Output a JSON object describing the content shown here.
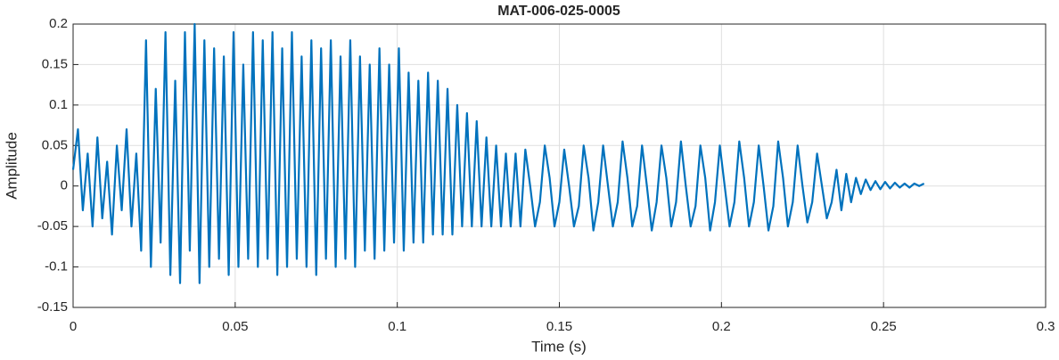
{
  "chart_data": {
    "type": "line",
    "title": "MAT-006-025-0005",
    "x_label": "Time (s)",
    "y_label": "Amplitude",
    "grid": true,
    "xlim": [
      0,
      0.3
    ],
    "xticks": [
      0,
      0.05,
      0.1,
      0.15,
      0.2,
      0.25,
      0.3
    ],
    "ylim": [
      -0.15,
      0.2
    ],
    "yticks": [
      -0.15,
      -0.1,
      -0.05,
      0,
      0.05,
      0.1,
      0.15,
      0.2
    ],
    "series": [
      {
        "color": "#0072bd",
        "x": [
          0,
          0.0015,
          0.003,
          0.0045,
          0.006,
          0.0075,
          0.009,
          0.0105,
          0.012,
          0.0135,
          0.015,
          0.0165,
          0.018,
          0.0195,
          0.021,
          0.0225,
          0.024,
          0.0255,
          0.027,
          0.0285,
          0.03,
          0.0315,
          0.033,
          0.0345,
          0.036,
          0.0375,
          0.039,
          0.0405,
          0.042,
          0.0435,
          0.045,
          0.0465,
          0.048,
          0.0495,
          0.051,
          0.0525,
          0.054,
          0.0555,
          0.057,
          0.0585,
          0.06,
          0.0615,
          0.063,
          0.0645,
          0.066,
          0.0675,
          0.069,
          0.0705,
          0.072,
          0.0735,
          0.075,
          0.0765,
          0.078,
          0.0795,
          0.081,
          0.0825,
          0.084,
          0.0855,
          0.087,
          0.0885,
          0.09,
          0.0915,
          0.093,
          0.0945,
          0.096,
          0.0975,
          0.099,
          0.1005,
          0.102,
          0.1035,
          0.105,
          0.1065,
          0.108,
          0.1095,
          0.111,
          0.1125,
          0.114,
          0.1155,
          0.117,
          0.1185,
          0.12,
          0.1215,
          0.123,
          0.1245,
          0.126,
          0.1275,
          0.129,
          0.1305,
          0.132,
          0.1335,
          0.135,
          0.1365,
          0.138,
          0.1395,
          0.141,
          0.1425,
          0.144,
          0.1455,
          0.147,
          0.1485,
          0.15,
          0.1515,
          0.153,
          0.1545,
          0.156,
          0.1575,
          0.159,
          0.1605,
          0.162,
          0.1635,
          0.165,
          0.1665,
          0.168,
          0.1695,
          0.171,
          0.1725,
          0.174,
          0.1755,
          0.177,
          0.1785,
          0.18,
          0.1815,
          0.183,
          0.1845,
          0.186,
          0.1875,
          0.189,
          0.1905,
          0.192,
          0.1935,
          0.195,
          0.1965,
          0.198,
          0.1995,
          0.201,
          0.2025,
          0.204,
          0.2055,
          0.207,
          0.2085,
          0.21,
          0.2115,
          0.213,
          0.2145,
          0.216,
          0.2175,
          0.219,
          0.2205,
          0.222,
          0.2235,
          0.225,
          0.2265,
          0.228,
          0.2295,
          0.231,
          0.2325,
          0.234,
          0.2355,
          0.237,
          0.2385,
          0.24,
          0.2415,
          0.243,
          0.2445,
          0.246,
          0.2475,
          0.249,
          0.2505,
          0.252,
          0.2535,
          0.255,
          0.2565,
          0.258,
          0.2595,
          0.261,
          0.2625
        ],
        "values": [
          0.02,
          0.07,
          -0.03,
          0.04,
          -0.05,
          0.06,
          -0.04,
          0.03,
          -0.06,
          0.05,
          -0.03,
          0.07,
          -0.05,
          0.04,
          -0.08,
          0.18,
          -0.1,
          0.12,
          -0.07,
          0.19,
          -0.11,
          0.13,
          -0.12,
          0.19,
          -0.08,
          0.2,
          -0.12,
          0.18,
          -0.1,
          0.17,
          -0.09,
          0.16,
          -0.11,
          0.19,
          -0.1,
          0.15,
          -0.09,
          0.19,
          -0.1,
          0.18,
          -0.09,
          0.19,
          -0.11,
          0.17,
          -0.1,
          0.19,
          -0.09,
          0.16,
          -0.1,
          0.18,
          -0.11,
          0.17,
          -0.09,
          0.18,
          -0.1,
          0.16,
          -0.09,
          0.18,
          -0.1,
          0.16,
          -0.08,
          0.15,
          -0.09,
          0.17,
          -0.08,
          0.15,
          -0.07,
          0.17,
          -0.08,
          0.14,
          -0.07,
          0.13,
          -0.07,
          0.14,
          -0.06,
          0.13,
          -0.06,
          0.12,
          -0.06,
          0.1,
          -0.05,
          0.09,
          -0.05,
          0.08,
          -0.05,
          0.06,
          -0.05,
          0.05,
          -0.05,
          0.04,
          -0.05,
          0.04,
          -0.05,
          0.045,
          0.0,
          -0.05,
          -0.02,
          0.05,
          0.01,
          -0.05,
          -0.02,
          0.045,
          0.0,
          -0.05,
          -0.025,
          0.05,
          0.01,
          -0.055,
          -0.02,
          0.05,
          0.0,
          -0.05,
          -0.02,
          0.055,
          0.01,
          -0.05,
          -0.025,
          0.05,
          0.0,
          -0.055,
          -0.02,
          0.05,
          0.01,
          -0.05,
          -0.02,
          0.055,
          0.0,
          -0.05,
          -0.025,
          0.05,
          0.01,
          -0.055,
          -0.02,
          0.05,
          0.0,
          -0.05,
          -0.02,
          0.055,
          0.01,
          -0.05,
          -0.02,
          0.05,
          0.0,
          -0.055,
          -0.025,
          0.055,
          0.01,
          -0.05,
          -0.02,
          0.05,
          0.0,
          -0.045,
          -0.02,
          0.04,
          0.0,
          -0.04,
          -0.02,
          0.02,
          -0.03,
          0.015,
          -0.02,
          0.01,
          -0.01,
          0.008,
          -0.005,
          0.006,
          -0.004,
          0.005,
          -0.003,
          0.004,
          -0.002,
          0.003,
          -0.002,
          0.003,
          0,
          0.003
        ]
      }
    ]
  }
}
